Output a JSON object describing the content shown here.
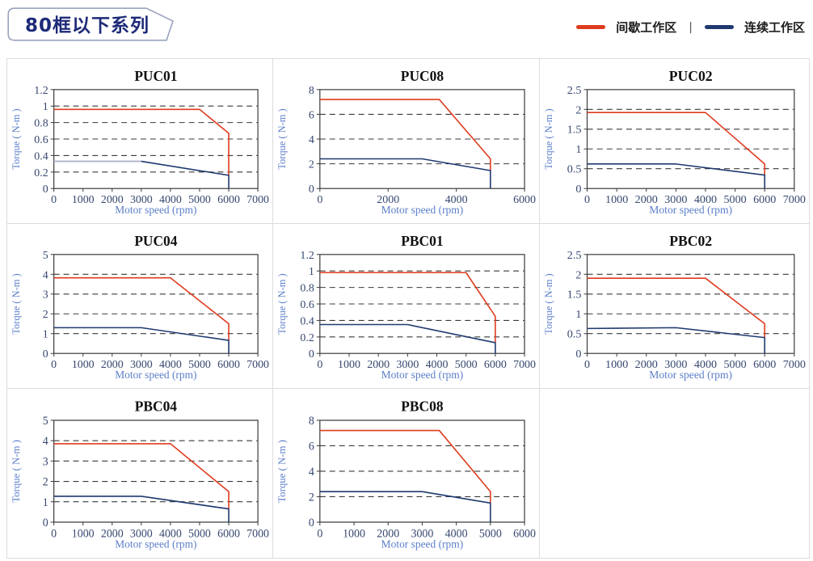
{
  "header": {
    "badge": "80框以下系列"
  },
  "legend": {
    "intermittent_label": "间歇工作区",
    "separator": "|",
    "continuous_label": "连续工作区"
  },
  "colors": {
    "intermittent_red": "#df3b1e",
    "continuous_navy": "#1f3a70",
    "continuous_pale": "#aeb5c8",
    "axis_label_blue": "#5b7ec9",
    "tick_label": "#36476f",
    "title_black": "#111111",
    "plot_line": "#3a3a3a",
    "grid_border": "#dcdcdc",
    "badge_text": "#1e2a78",
    "badge_border": "#9aa3bf",
    "legend_text": "#1c1c1c"
  },
  "chart_data": [
    {
      "type": "line",
      "title": "PUC01",
      "xlabel": "Motor speed (rpm)",
      "ylabel": "Torque ( N-m )",
      "xlim": [
        0,
        7000
      ],
      "xticks": [
        0,
        1000,
        2000,
        3000,
        4000,
        5000,
        6000,
        7000
      ],
      "ylim": [
        0,
        1.2
      ],
      "yticks": [
        0,
        0.2,
        0.4,
        0.6,
        0.8,
        1,
        1.2
      ],
      "grid": "dashed-horizontal",
      "legend_position": "none",
      "series": [
        {
          "key": "intermittent",
          "name": "间歇工作区",
          "color_key": "intermittent_red",
          "points": [
            [
              0,
              0.96
            ],
            [
              5000,
              0.96
            ],
            [
              6000,
              0.67
            ],
            [
              6000,
              0.16
            ]
          ]
        },
        {
          "key": "continuous",
          "name": "连续工作区",
          "color_key": "continuous_navy",
          "first_segment_color_key": "continuous_pale",
          "points": [
            [
              0,
              0.33
            ],
            [
              3000,
              0.33
            ],
            [
              6000,
              0.16
            ],
            [
              6000,
              0
            ]
          ]
        }
      ]
    },
    {
      "type": "line",
      "title": "PUC08",
      "xlabel": "Motor speed (rpm)",
      "ylabel": "Torque ( N-m )",
      "xlim": [
        0,
        6000
      ],
      "xticks": [
        0,
        2000,
        4000,
        6000
      ],
      "ylim": [
        0,
        8
      ],
      "yticks": [
        0,
        2,
        4,
        6,
        8
      ],
      "grid": "dashed-horizontal",
      "legend_position": "none",
      "series": [
        {
          "key": "intermittent",
          "name": "间歇工作区",
          "color_key": "intermittent_red",
          "points": [
            [
              0,
              7.2
            ],
            [
              3500,
              7.2
            ],
            [
              5000,
              2.4
            ],
            [
              5000,
              1.45
            ]
          ]
        },
        {
          "key": "continuous",
          "name": "连续工作区",
          "color_key": "continuous_navy",
          "points": [
            [
              0,
              2.4
            ],
            [
              3000,
              2.4
            ],
            [
              5000,
              1.45
            ],
            [
              5000,
              0
            ]
          ]
        }
      ]
    },
    {
      "type": "line",
      "title": "PUC02",
      "xlabel": "Motor speed (rpm)",
      "ylabel": "Torque ( N-m )",
      "xlim": [
        0,
        7000
      ],
      "xticks": [
        0,
        1000,
        2000,
        3000,
        4000,
        5000,
        6000,
        7000
      ],
      "ylim": [
        0,
        2.5
      ],
      "yticks": [
        0,
        0.5,
        1,
        1.5,
        2,
        2.5
      ],
      "grid": "dashed-horizontal",
      "legend_position": "none",
      "series": [
        {
          "key": "intermittent",
          "name": "间歇工作区",
          "color_key": "intermittent_red",
          "points": [
            [
              0,
              1.92
            ],
            [
              4000,
              1.92
            ],
            [
              6000,
              0.62
            ],
            [
              6000,
              0.34
            ]
          ]
        },
        {
          "key": "continuous",
          "name": "连续工作区",
          "color_key": "continuous_navy",
          "points": [
            [
              0,
              0.62
            ],
            [
              3000,
              0.62
            ],
            [
              6000,
              0.34
            ],
            [
              6000,
              0
            ]
          ]
        }
      ]
    },
    {
      "type": "line",
      "title": "PUC04",
      "xlabel": "Motor speed (rpm)",
      "ylabel": "Torque ( N-m )",
      "xlim": [
        0,
        7000
      ],
      "xticks": [
        0,
        1000,
        2000,
        3000,
        4000,
        5000,
        6000,
        7000
      ],
      "ylim": [
        0,
        5
      ],
      "yticks": [
        0,
        1,
        2,
        3,
        4,
        5
      ],
      "grid": "dashed-horizontal",
      "legend_position": "none",
      "series": [
        {
          "key": "intermittent",
          "name": "间歇工作区",
          "color_key": "intermittent_red",
          "points": [
            [
              0,
              3.82
            ],
            [
              4000,
              3.82
            ],
            [
              6000,
              1.5
            ],
            [
              6000,
              0.66
            ]
          ]
        },
        {
          "key": "continuous",
          "name": "连续工作区",
          "color_key": "continuous_navy",
          "points": [
            [
              0,
              1.3
            ],
            [
              3000,
              1.3
            ],
            [
              6000,
              0.66
            ],
            [
              6000,
              0
            ]
          ]
        }
      ]
    },
    {
      "type": "line",
      "title": "PBC01",
      "xlabel": "Motor speed (rpm)",
      "ylabel": "Torque ( N-m )",
      "xlim": [
        0,
        7000
      ],
      "xticks": [
        0,
        1000,
        2000,
        3000,
        4000,
        5000,
        6000,
        7000
      ],
      "ylim": [
        0,
        1.2
      ],
      "yticks": [
        0,
        0.2,
        0.4,
        0.6,
        0.8,
        1,
        1.2
      ],
      "grid": "dashed-horizontal",
      "legend_position": "none",
      "series": [
        {
          "key": "intermittent",
          "name": "间歇工作区",
          "color_key": "intermittent_red",
          "points": [
            [
              0,
              0.98
            ],
            [
              5000,
              0.98
            ],
            [
              6000,
              0.45
            ],
            [
              6000,
              0.13
            ]
          ]
        },
        {
          "key": "continuous",
          "name": "连续工作区",
          "color_key": "continuous_navy",
          "points": [
            [
              0,
              0.35
            ],
            [
              3000,
              0.35
            ],
            [
              6000,
              0.13
            ],
            [
              6000,
              0
            ]
          ]
        }
      ]
    },
    {
      "type": "line",
      "title": "PBC02",
      "xlabel": "Motor speed (rpm)",
      "ylabel": "Torque ( N-m )",
      "xlim": [
        0,
        7000
      ],
      "xticks": [
        0,
        1000,
        2000,
        3000,
        4000,
        5000,
        6000,
        7000
      ],
      "ylim": [
        0,
        2.5
      ],
      "yticks": [
        0,
        0.5,
        1,
        1.5,
        2,
        2.5
      ],
      "grid": "dashed-horizontal",
      "legend_position": "none",
      "series": [
        {
          "key": "intermittent",
          "name": "间歇工作区",
          "color_key": "intermittent_red",
          "points": [
            [
              0,
              1.9
            ],
            [
              4000,
              1.9
            ],
            [
              6000,
              0.75
            ],
            [
              6000,
              0.4
            ]
          ]
        },
        {
          "key": "continuous",
          "name": "连续工作区",
          "color_key": "continuous_navy",
          "points": [
            [
              0,
              0.63
            ],
            [
              3000,
              0.65
            ],
            [
              6000,
              0.4
            ],
            [
              6000,
              0
            ]
          ]
        }
      ]
    },
    {
      "type": "line",
      "title": "PBC04",
      "xlabel": "Motor speed (rpm)",
      "ylabel": "Torque ( N-m )",
      "xlim": [
        0,
        7000
      ],
      "xticks": [
        0,
        1000,
        2000,
        3000,
        4000,
        5000,
        6000,
        7000
      ],
      "ylim": [
        0,
        5
      ],
      "yticks": [
        0,
        1,
        2,
        3,
        4,
        5
      ],
      "grid": "dashed-horizontal",
      "legend_position": "none",
      "series": [
        {
          "key": "intermittent",
          "name": "间歇工作区",
          "color_key": "intermittent_red",
          "points": [
            [
              0,
              3.85
            ],
            [
              4000,
              3.85
            ],
            [
              6000,
              1.5
            ],
            [
              6000,
              0.65
            ]
          ]
        },
        {
          "key": "continuous",
          "name": "连续工作区",
          "color_key": "continuous_navy",
          "points": [
            [
              0,
              1.27
            ],
            [
              3000,
              1.27
            ],
            [
              6000,
              0.65
            ],
            [
              6000,
              0
            ]
          ]
        }
      ]
    },
    {
      "type": "line",
      "title": "PBC08",
      "xlabel": "Motor speed (rpm)",
      "ylabel": "Torque ( N-m )",
      "xlim": [
        0,
        6000
      ],
      "xticks": [
        0,
        1000,
        2000,
        3000,
        4000,
        5000,
        6000
      ],
      "ylim": [
        0,
        8
      ],
      "yticks": [
        0,
        2,
        4,
        6,
        8
      ],
      "grid": "dashed-horizontal",
      "legend_position": "none",
      "series": [
        {
          "key": "intermittent",
          "name": "间歇工作区",
          "color_key": "intermittent_red",
          "points": [
            [
              0,
              7.2
            ],
            [
              3500,
              7.2
            ],
            [
              5000,
              2.4
            ],
            [
              5000,
              1.5
            ]
          ]
        },
        {
          "key": "continuous",
          "name": "连续工作区",
          "color_key": "continuous_navy",
          "points": [
            [
              0,
              2.4
            ],
            [
              3000,
              2.4
            ],
            [
              5000,
              1.5
            ],
            [
              5000,
              0
            ]
          ]
        }
      ]
    }
  ]
}
